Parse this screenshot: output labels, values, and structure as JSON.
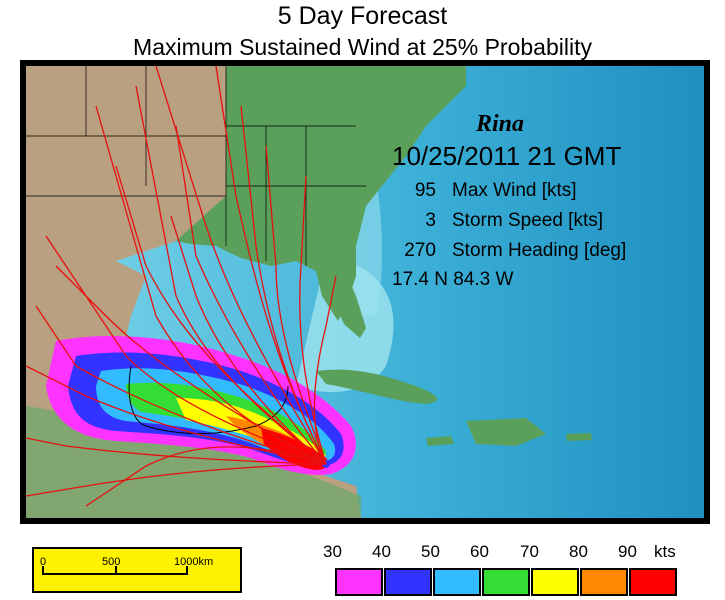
{
  "title": "5 Day Forecast",
  "subtitle": "Maximum Sustained Wind at 25% Probability",
  "storm": {
    "name": "Rina",
    "datetime": "10/25/2011  21 GMT",
    "max_wind_value": "95",
    "max_wind_label": "Max Wind [kts]",
    "speed_value": "3",
    "speed_label": "Storm Speed [kts]",
    "heading_value": "270",
    "heading_label": "Storm Heading [deg]",
    "position": "17.4 N  84.3 W"
  },
  "scale_bar": {
    "labels": [
      "0",
      "500",
      "1000km"
    ]
  },
  "legend": {
    "labels": [
      "30",
      "40",
      "50",
      "60",
      "70",
      "80",
      "90",
      "kts"
    ],
    "colors": [
      "#ff33ff",
      "#3333ff",
      "#33bbff",
      "#33dd33",
      "#ffff00",
      "#ff8800",
      "#ff0000"
    ]
  },
  "map_colors": {
    "ocean_deep": "#2a9cc8",
    "ocean_shallow": "#9fe4ee",
    "land_us": "#5aa05a",
    "land_west": "#b8a080",
    "track": "#e81010"
  }
}
